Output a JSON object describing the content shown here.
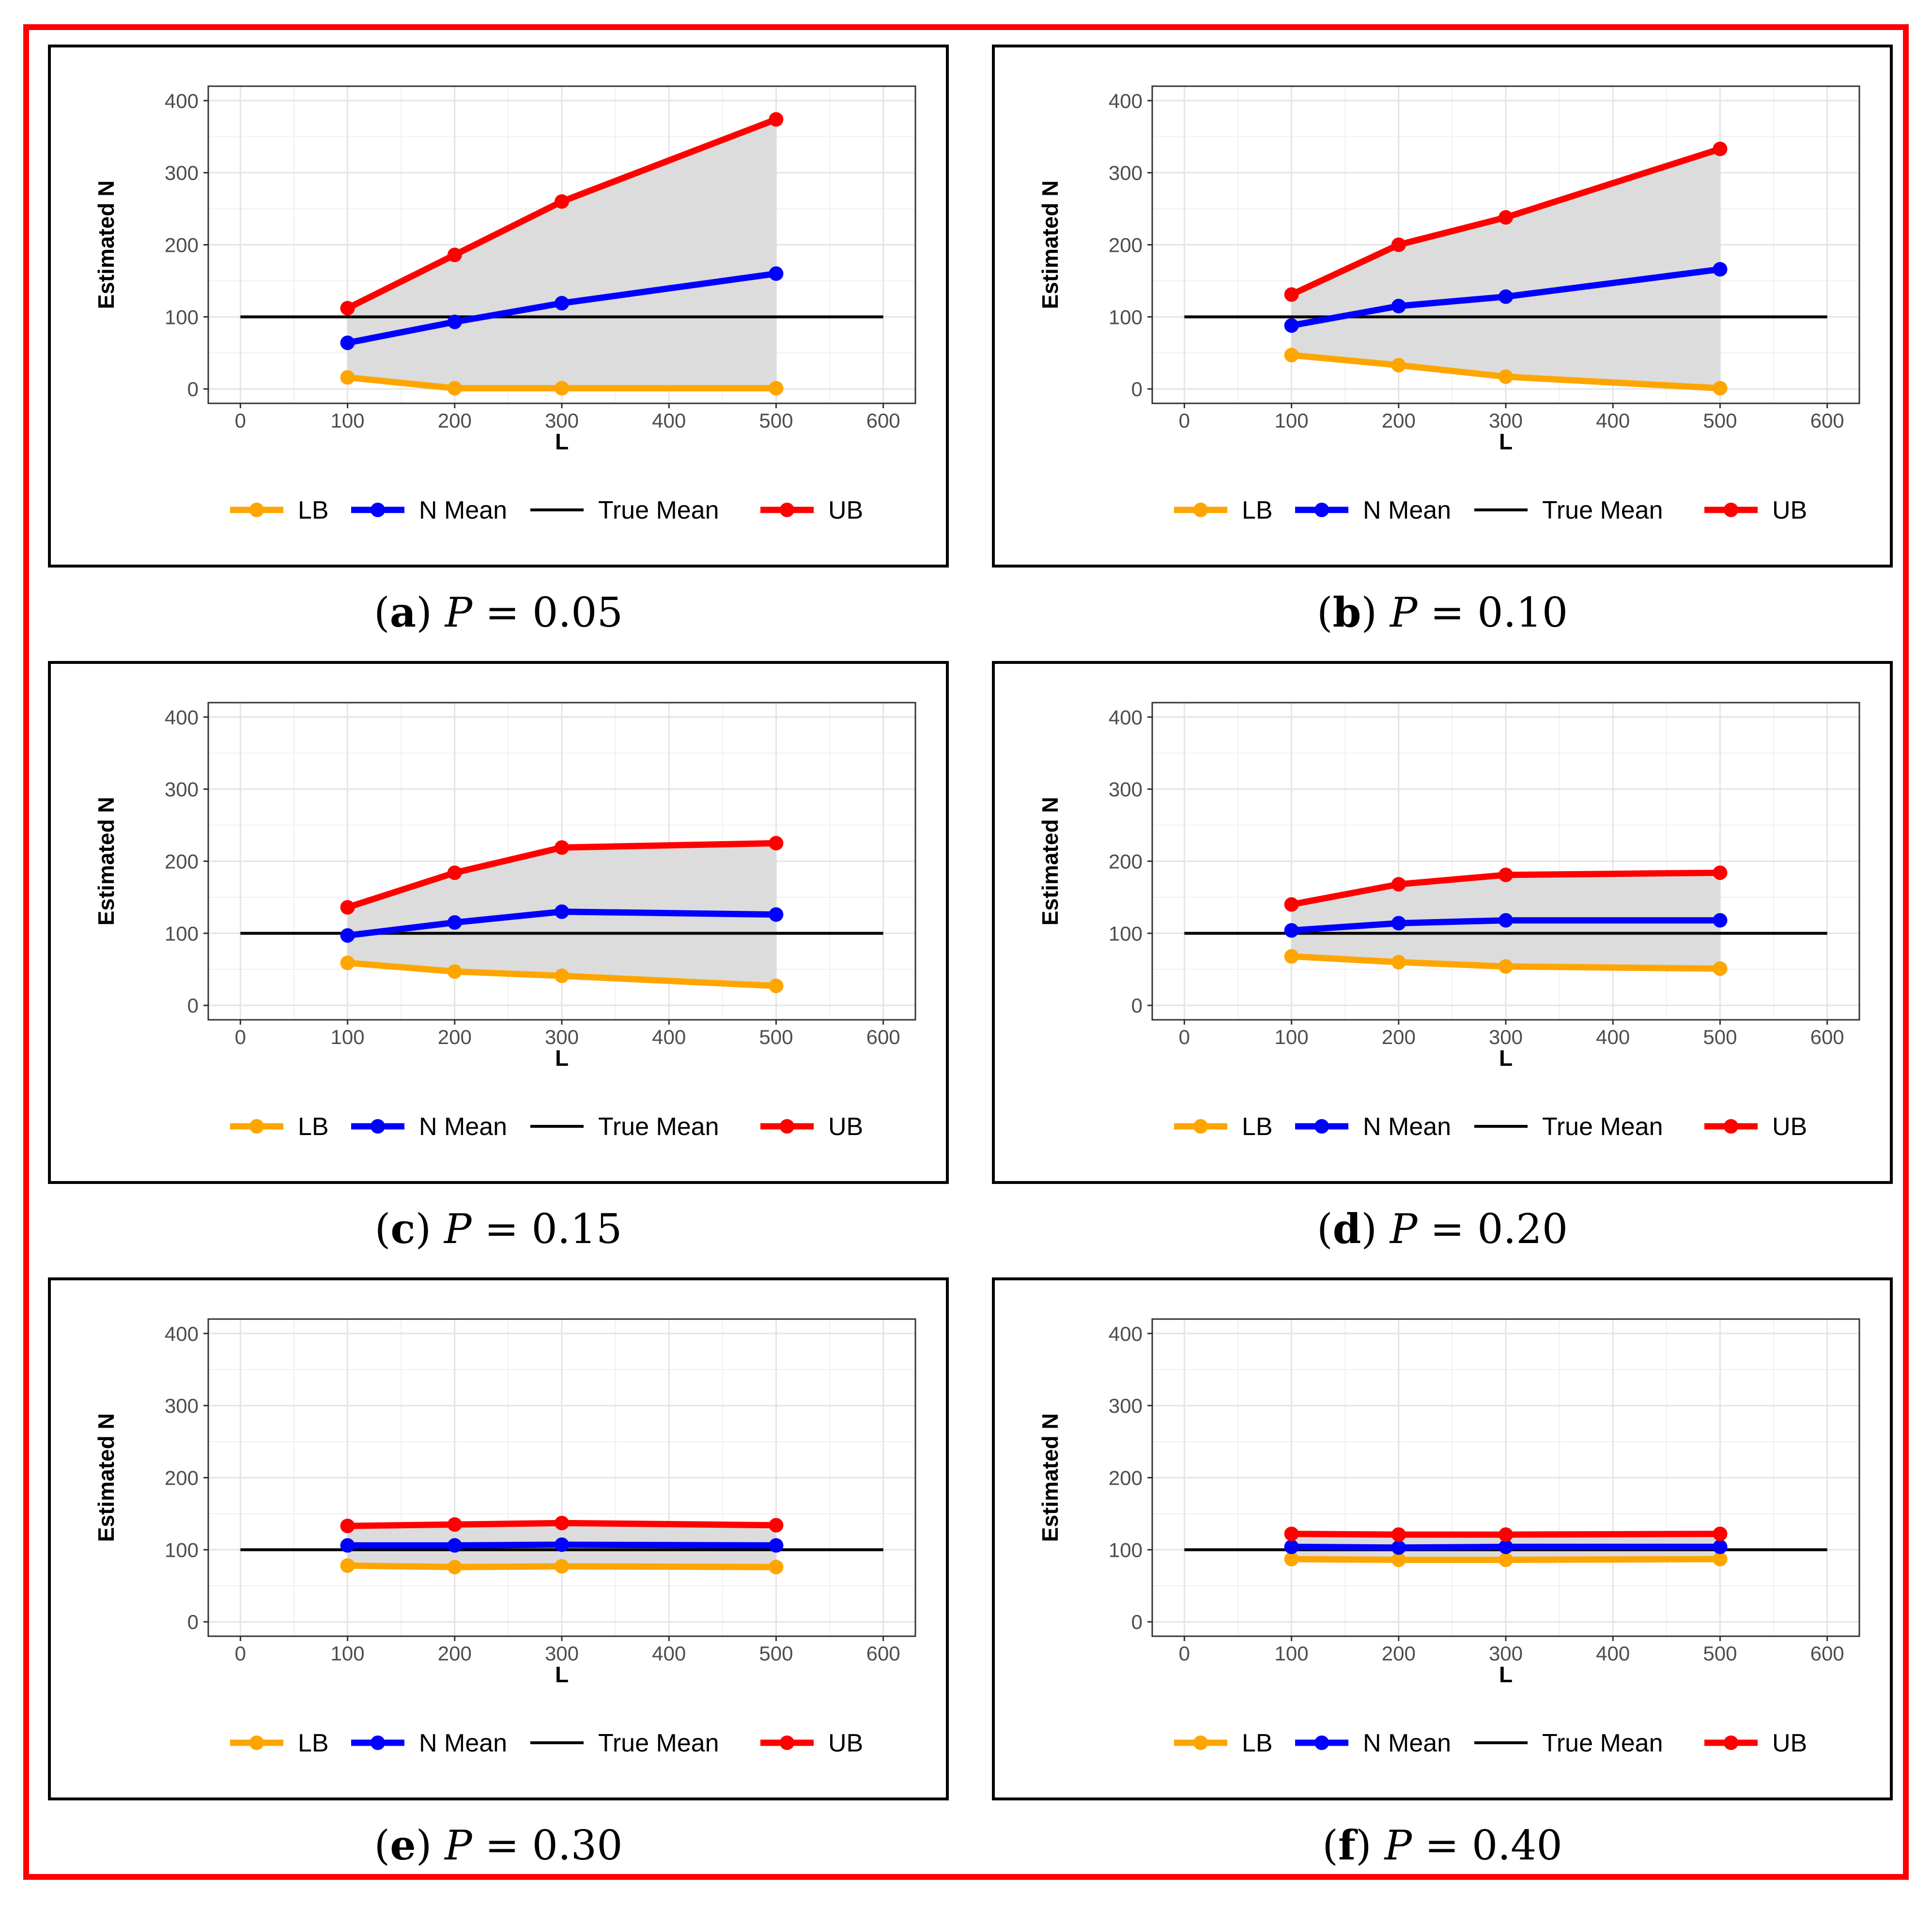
{
  "colors": {
    "lb": "#ffa500",
    "mean": "#0000ff",
    "true": "#000000",
    "ub": "#ff0000",
    "band": "#dcdcdc",
    "frame": "#ff0000"
  },
  "legend": {
    "lb": "LB",
    "mean": "N Mean",
    "true": "True Mean",
    "ub": "UB"
  },
  "chart_data": [
    {
      "type": "line",
      "panel": "a",
      "p_label": "P",
      "p_value": "0.05",
      "xlabel": "L",
      "ylabel": "Estimated N",
      "xlim": [
        -30,
        630
      ],
      "ylim": [
        -20,
        420
      ],
      "xticks": [
        0,
        100,
        200,
        300,
        400,
        500,
        600
      ],
      "yticks": [
        0,
        100,
        200,
        300,
        400
      ],
      "x": [
        100,
        200,
        300,
        500
      ],
      "true_mean": 100,
      "true_mean_x": [
        0,
        600
      ],
      "series": [
        {
          "name": "LB",
          "values": [
            16,
            1,
            1,
            1
          ]
        },
        {
          "name": "N Mean",
          "values": [
            64,
            93,
            119,
            160
          ]
        },
        {
          "name": "UB",
          "values": [
            112,
            186,
            260,
            374
          ]
        }
      ]
    },
    {
      "type": "line",
      "panel": "b",
      "p_label": "P",
      "p_value": "0.10",
      "xlabel": "L",
      "ylabel": "Estimated N",
      "xlim": [
        -30,
        630
      ],
      "ylim": [
        -20,
        420
      ],
      "xticks": [
        0,
        100,
        200,
        300,
        400,
        500,
        600
      ],
      "yticks": [
        0,
        100,
        200,
        300,
        400
      ],
      "x": [
        100,
        200,
        300,
        500
      ],
      "true_mean": 100,
      "true_mean_x": [
        0,
        600
      ],
      "series": [
        {
          "name": "LB",
          "values": [
            47,
            33,
            17,
            1
          ]
        },
        {
          "name": "N Mean",
          "values": [
            88,
            115,
            128,
            166
          ]
        },
        {
          "name": "UB",
          "values": [
            131,
            200,
            238,
            333
          ]
        }
      ]
    },
    {
      "type": "line",
      "panel": "c",
      "p_label": "P",
      "p_value": "0.15",
      "xlabel": "L",
      "ylabel": "Estimated N",
      "xlim": [
        -30,
        630
      ],
      "ylim": [
        -20,
        420
      ],
      "xticks": [
        0,
        100,
        200,
        300,
        400,
        500,
        600
      ],
      "yticks": [
        0,
        100,
        200,
        300,
        400
      ],
      "x": [
        100,
        200,
        300,
        500
      ],
      "true_mean": 100,
      "true_mean_x": [
        0,
        600
      ],
      "series": [
        {
          "name": "LB",
          "values": [
            59,
            47,
            41,
            27
          ]
        },
        {
          "name": "N Mean",
          "values": [
            97,
            115,
            130,
            126
          ]
        },
        {
          "name": "UB",
          "values": [
            136,
            184,
            219,
            225
          ]
        }
      ]
    },
    {
      "type": "line",
      "panel": "d",
      "p_label": "P",
      "p_value": "0.20",
      "xlabel": "L",
      "ylabel": "Estimated N",
      "xlim": [
        -30,
        630
      ],
      "ylim": [
        -20,
        420
      ],
      "xticks": [
        0,
        100,
        200,
        300,
        400,
        500,
        600
      ],
      "yticks": [
        0,
        100,
        200,
        300,
        400
      ],
      "x": [
        100,
        200,
        300,
        500
      ],
      "true_mean": 100,
      "true_mean_x": [
        0,
        600
      ],
      "series": [
        {
          "name": "LB",
          "values": [
            68,
            60,
            54,
            51
          ]
        },
        {
          "name": "N Mean",
          "values": [
            104,
            114,
            118,
            118
          ]
        },
        {
          "name": "UB",
          "values": [
            140,
            168,
            181,
            184
          ]
        }
      ]
    },
    {
      "type": "line",
      "panel": "e",
      "p_label": "P",
      "p_value": "0.30",
      "xlabel": "L",
      "ylabel": "Estimated N",
      "xlim": [
        -30,
        630
      ],
      "ylim": [
        -20,
        420
      ],
      "xticks": [
        0,
        100,
        200,
        300,
        400,
        500,
        600
      ],
      "yticks": [
        0,
        100,
        200,
        300,
        400
      ],
      "x": [
        100,
        200,
        300,
        500
      ],
      "true_mean": 100,
      "true_mean_x": [
        0,
        600
      ],
      "series": [
        {
          "name": "LB",
          "values": [
            78,
            76,
            77,
            76
          ]
        },
        {
          "name": "N Mean",
          "values": [
            106,
            106,
            107,
            106
          ]
        },
        {
          "name": "UB",
          "values": [
            133,
            135,
            137,
            134
          ]
        }
      ]
    },
    {
      "type": "line",
      "panel": "f",
      "p_label": "P",
      "p_value": "0.40",
      "xlabel": "L",
      "ylabel": "Estimated N",
      "xlim": [
        -30,
        630
      ],
      "ylim": [
        -20,
        420
      ],
      "xticks": [
        0,
        100,
        200,
        300,
        400,
        500,
        600
      ],
      "yticks": [
        0,
        100,
        200,
        300,
        400
      ],
      "x": [
        100,
        200,
        300,
        500
      ],
      "true_mean": 100,
      "true_mean_x": [
        0,
        600
      ],
      "series": [
        {
          "name": "LB",
          "values": [
            87,
            86,
            86,
            87
          ]
        },
        {
          "name": "N Mean",
          "values": [
            104,
            103,
            104,
            104
          ]
        },
        {
          "name": "UB",
          "values": [
            122,
            121,
            121,
            122
          ]
        }
      ]
    }
  ]
}
